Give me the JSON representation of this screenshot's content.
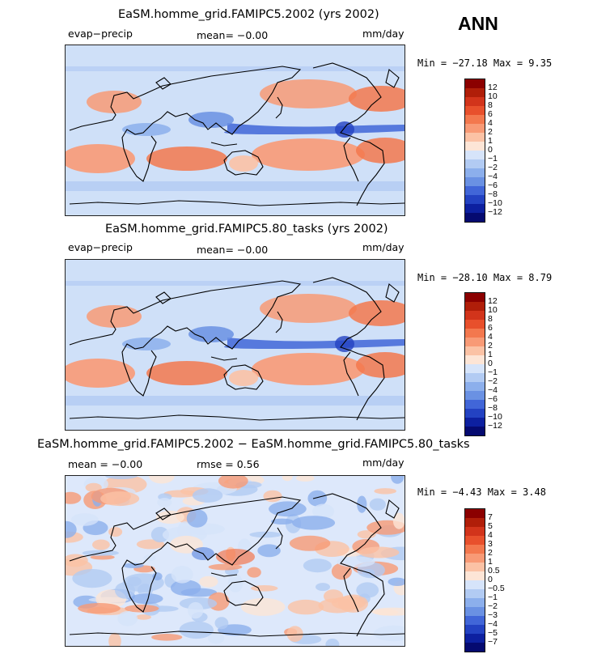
{
  "season": "ANN",
  "chart_data": [
    {
      "type": "heatmap",
      "title": "EaSM.homme_grid.FAMIPC5.2002 (yrs 2002)",
      "variable": "evap−precip",
      "mean_text": "mean=   −0.00",
      "units": "mm/day",
      "minmax_text": "Min = −27.18 Max =   9.35",
      "min": -27.18,
      "max": 9.35,
      "levels": [
        "12",
        "10",
        "8",
        "6",
        "4",
        "2",
        "1",
        "0",
        "−1",
        "−2",
        "−4",
        "−6",
        "−8",
        "−10",
        "−12"
      ],
      "colors": [
        "#8b0000",
        "#b01e09",
        "#d2341b",
        "#e8502c",
        "#f3784e",
        "#f89a76",
        "#fbc2a5",
        "#fde5d6",
        "#d6e4fa",
        "#b2cbf3",
        "#8cafec",
        "#6a91e3",
        "#4166d8",
        "#2342c2",
        "#0d20a0",
        "#050a70"
      ]
    },
    {
      "type": "heatmap",
      "title": "EaSM.homme_grid.FAMIPC5.80_tasks (yrs 2002)",
      "variable": "evap−precip",
      "mean_text": "mean=   −0.00",
      "units": "mm/day",
      "minmax_text": "Min = −28.10 Max =   8.79",
      "min": -28.1,
      "max": 8.79,
      "levels": [
        "12",
        "10",
        "8",
        "6",
        "4",
        "2",
        "1",
        "0",
        "−1",
        "−2",
        "−4",
        "−6",
        "−8",
        "−10",
        "−12"
      ],
      "colors": [
        "#8b0000",
        "#b01e09",
        "#d2341b",
        "#e8502c",
        "#f3784e",
        "#f89a76",
        "#fbc2a5",
        "#fde5d6",
        "#d6e4fa",
        "#b2cbf3",
        "#8cafec",
        "#6a91e3",
        "#4166d8",
        "#2342c2",
        "#0d20a0",
        "#050a70"
      ]
    },
    {
      "type": "heatmap",
      "title": "EaSM.homme_grid.FAMIPC5.2002 − EaSM.homme_grid.FAMIPC5.80_tasks",
      "mean_text": "mean =   −0.00",
      "rmse_text": "rmse =    0.56",
      "units": "mm/day",
      "minmax_text": "Min =  −4.43 Max =   3.48",
      "min": -4.43,
      "max": 3.48,
      "levels": [
        "7",
        "5",
        "4",
        "3",
        "2",
        "1",
        "0.5",
        "0",
        "−0.5",
        "−1",
        "−2",
        "−3",
        "−4",
        "−5",
        "−7"
      ],
      "colors": [
        "#8b0000",
        "#b01e09",
        "#d2341b",
        "#e8502c",
        "#f3784e",
        "#f89a76",
        "#fbc2a5",
        "#fde5d6",
        "#d6e4fa",
        "#b2cbf3",
        "#8cafec",
        "#6a91e3",
        "#4166d8",
        "#2342c2",
        "#0d20a0",
        "#050a70"
      ]
    }
  ]
}
